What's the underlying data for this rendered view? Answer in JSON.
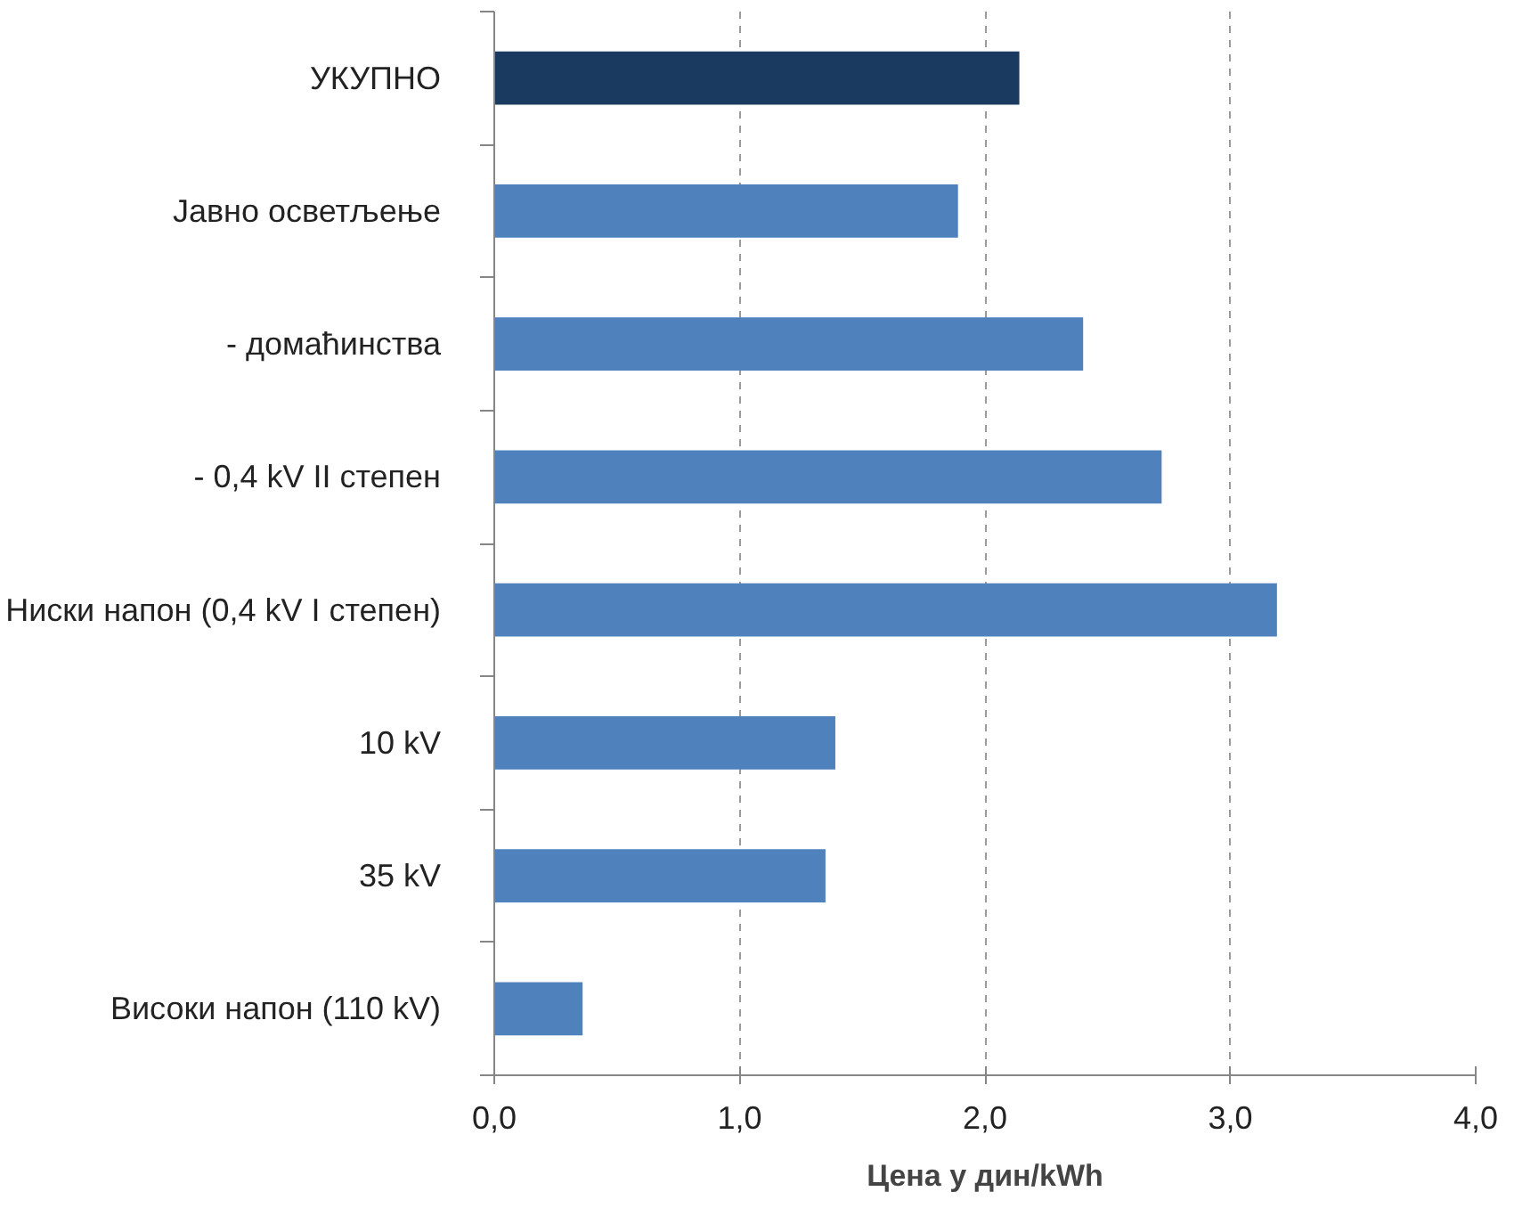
{
  "chart_data": {
    "type": "bar",
    "orientation": "horizontal",
    "categories": [
      "УКУПНО",
      "Јавно осветљење",
      "- домаћинства",
      "- 0,4 kV II степен",
      "Ниски напон (0,4 kV I степен)",
      "10 kV",
      "35 kV",
      "Високи напон (110 kV)"
    ],
    "values": [
      2.14,
      1.89,
      2.4,
      2.72,
      3.19,
      1.39,
      1.35,
      0.36
    ],
    "colors": [
      "#1b3a5f",
      "#4f81bd",
      "#4f81bd",
      "#4f81bd",
      "#4f81bd",
      "#4f81bd",
      "#4f81bd",
      "#4f81bd"
    ],
    "xlabel": "Цена у дин/kWh",
    "xlim": [
      0,
      4
    ],
    "xticks": [
      {
        "value": 0,
        "label": "0,0"
      },
      {
        "value": 1,
        "label": "1,0"
      },
      {
        "value": 2,
        "label": "2,0"
      },
      {
        "value": 3,
        "label": "3,0"
      },
      {
        "value": 4,
        "label": "4,0"
      }
    ],
    "grid": "x"
  }
}
